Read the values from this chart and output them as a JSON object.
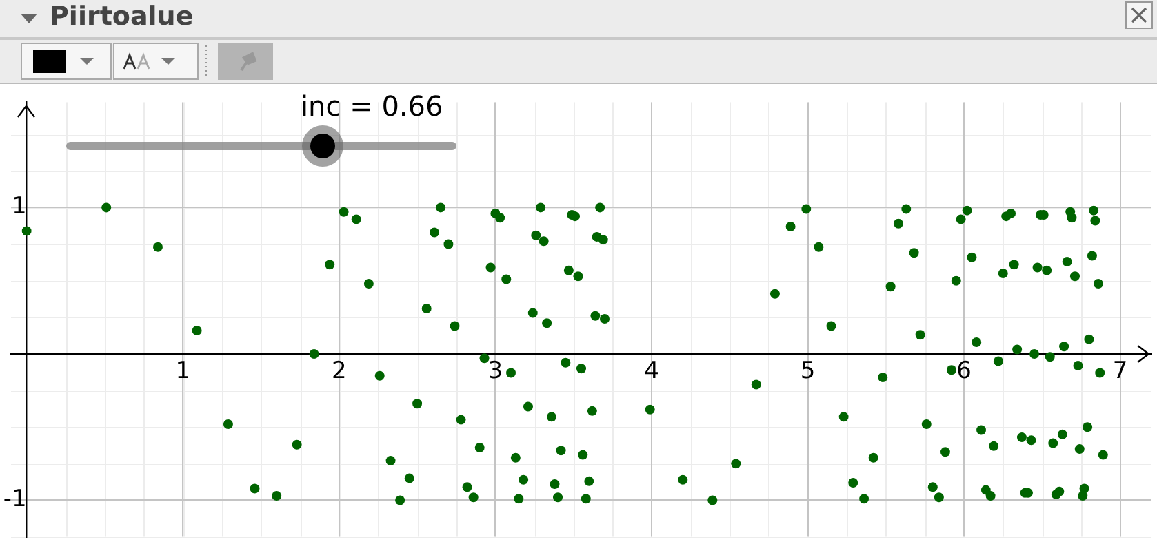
{
  "chart_data": {
    "type": "scatter",
    "title": "Piirtoalue",
    "annotations": [
      "inc = 0.66"
    ],
    "xlim": [
      -0.1,
      7.2
    ],
    "ylim": [
      -1.25,
      1.72
    ],
    "xticks": [
      1,
      2,
      3,
      4,
      5,
      6,
      7
    ],
    "yticks": [
      -1,
      1
    ],
    "grid": true,
    "legend": false,
    "marker": "circle",
    "series": [
      {
        "color": "#006400",
        "x": [
          0,
          0.51,
          0.84,
          1.09,
          1.29,
          1.46,
          1.6,
          1.73,
          1.84,
          1.94,
          2.03,
          2.11,
          2.19,
          2.26,
          2.33,
          2.39,
          2.45,
          2.5,
          2.56,
          2.61,
          2.65,
          2.7,
          2.74,
          2.78,
          2.82,
          2.86,
          2.9,
          2.93,
          2.97,
          3.0,
          3.03,
          3.07,
          3.1,
          3.13,
          3.15,
          3.18,
          3.21,
          3.24,
          3.26,
          3.29,
          3.31,
          3.33,
          3.36,
          3.38,
          3.4,
          3.42,
          3.45,
          3.47,
          3.49,
          3.51,
          3.53,
          3.55,
          3.56,
          3.58,
          3.6,
          3.62,
          3.64,
          3.65,
          3.67,
          3.69,
          3.7,
          3.99,
          4.2,
          4.39,
          4.54,
          4.67,
          4.79,
          4.89,
          4.99,
          5.07,
          5.15,
          5.23,
          5.29,
          5.36,
          5.42,
          5.48,
          5.53,
          5.58,
          5.63,
          5.68,
          5.72,
          5.76,
          5.8,
          5.84,
          5.88,
          5.92,
          5.95,
          5.98,
          6.02,
          6.05,
          6.08,
          6.11,
          6.14,
          6.17,
          6.19,
          6.22,
          6.25,
          6.27,
          6.3,
          6.32,
          6.34,
          6.37,
          6.39,
          6.41,
          6.43,
          6.45,
          6.47,
          6.49,
          6.51,
          6.53,
          6.55,
          6.57,
          6.59,
          6.61,
          6.63,
          6.64,
          6.66,
          6.68,
          6.69,
          6.71,
          6.73,
          6.74,
          6.76,
          6.77,
          6.79,
          6.8,
          6.82,
          6.83,
          6.84,
          6.86,
          6.87,
          6.89
        ],
        "values": [
          0.84,
          1.0,
          0.73,
          0.16,
          -0.48,
          -0.92,
          -0.97,
          -0.62,
          0.0,
          0.61,
          0.97,
          0.92,
          0.48,
          -0.15,
          -0.73,
          -1.0,
          -0.85,
          -0.34,
          0.31,
          0.83,
          1.0,
          0.75,
          0.19,
          -0.45,
          -0.91,
          -0.98,
          -0.64,
          -0.03,
          0.59,
          0.96,
          0.93,
          0.51,
          -0.13,
          -0.71,
          -0.99,
          -0.86,
          -0.36,
          0.28,
          0.81,
          1.0,
          0.77,
          0.21,
          -0.43,
          -0.89,
          -0.98,
          -0.66,
          -0.06,
          0.57,
          0.95,
          0.94,
          0.53,
          -0.1,
          -0.69,
          -0.99,
          -0.87,
          -0.39,
          0.26,
          0.8,
          1.0,
          0.78,
          0.24,
          -0.38,
          -0.86,
          -1.0,
          -0.75,
          -0.21,
          0.41,
          0.87,
          0.99,
          0.73,
          0.19,
          -0.43,
          -0.88,
          -0.99,
          -0.71,
          -0.16,
          0.46,
          0.89,
          0.99,
          0.69,
          0.13,
          -0.48,
          -0.91,
          -0.98,
          -0.67,
          -0.11,
          0.5,
          0.92,
          0.98,
          0.66,
          0.08,
          -0.52,
          -0.93,
          -0.97,
          -0.63,
          -0.05,
          0.55,
          0.94,
          0.96,
          0.61,
          0.03,
          -0.57,
          -0.95,
          -0.95,
          -0.59,
          0.0,
          0.59,
          0.95,
          0.95,
          0.57,
          -0.02,
          -0.61,
          -0.96,
          -0.94,
          -0.55,
          0.05,
          0.63,
          0.97,
          0.93,
          0.53,
          -0.08,
          -0.65,
          -0.97,
          -0.92,
          -0.5,
          0.1,
          0.67,
          0.98,
          0.91,
          0.48,
          -0.13,
          -0.69
        ]
      }
    ]
  }
}
